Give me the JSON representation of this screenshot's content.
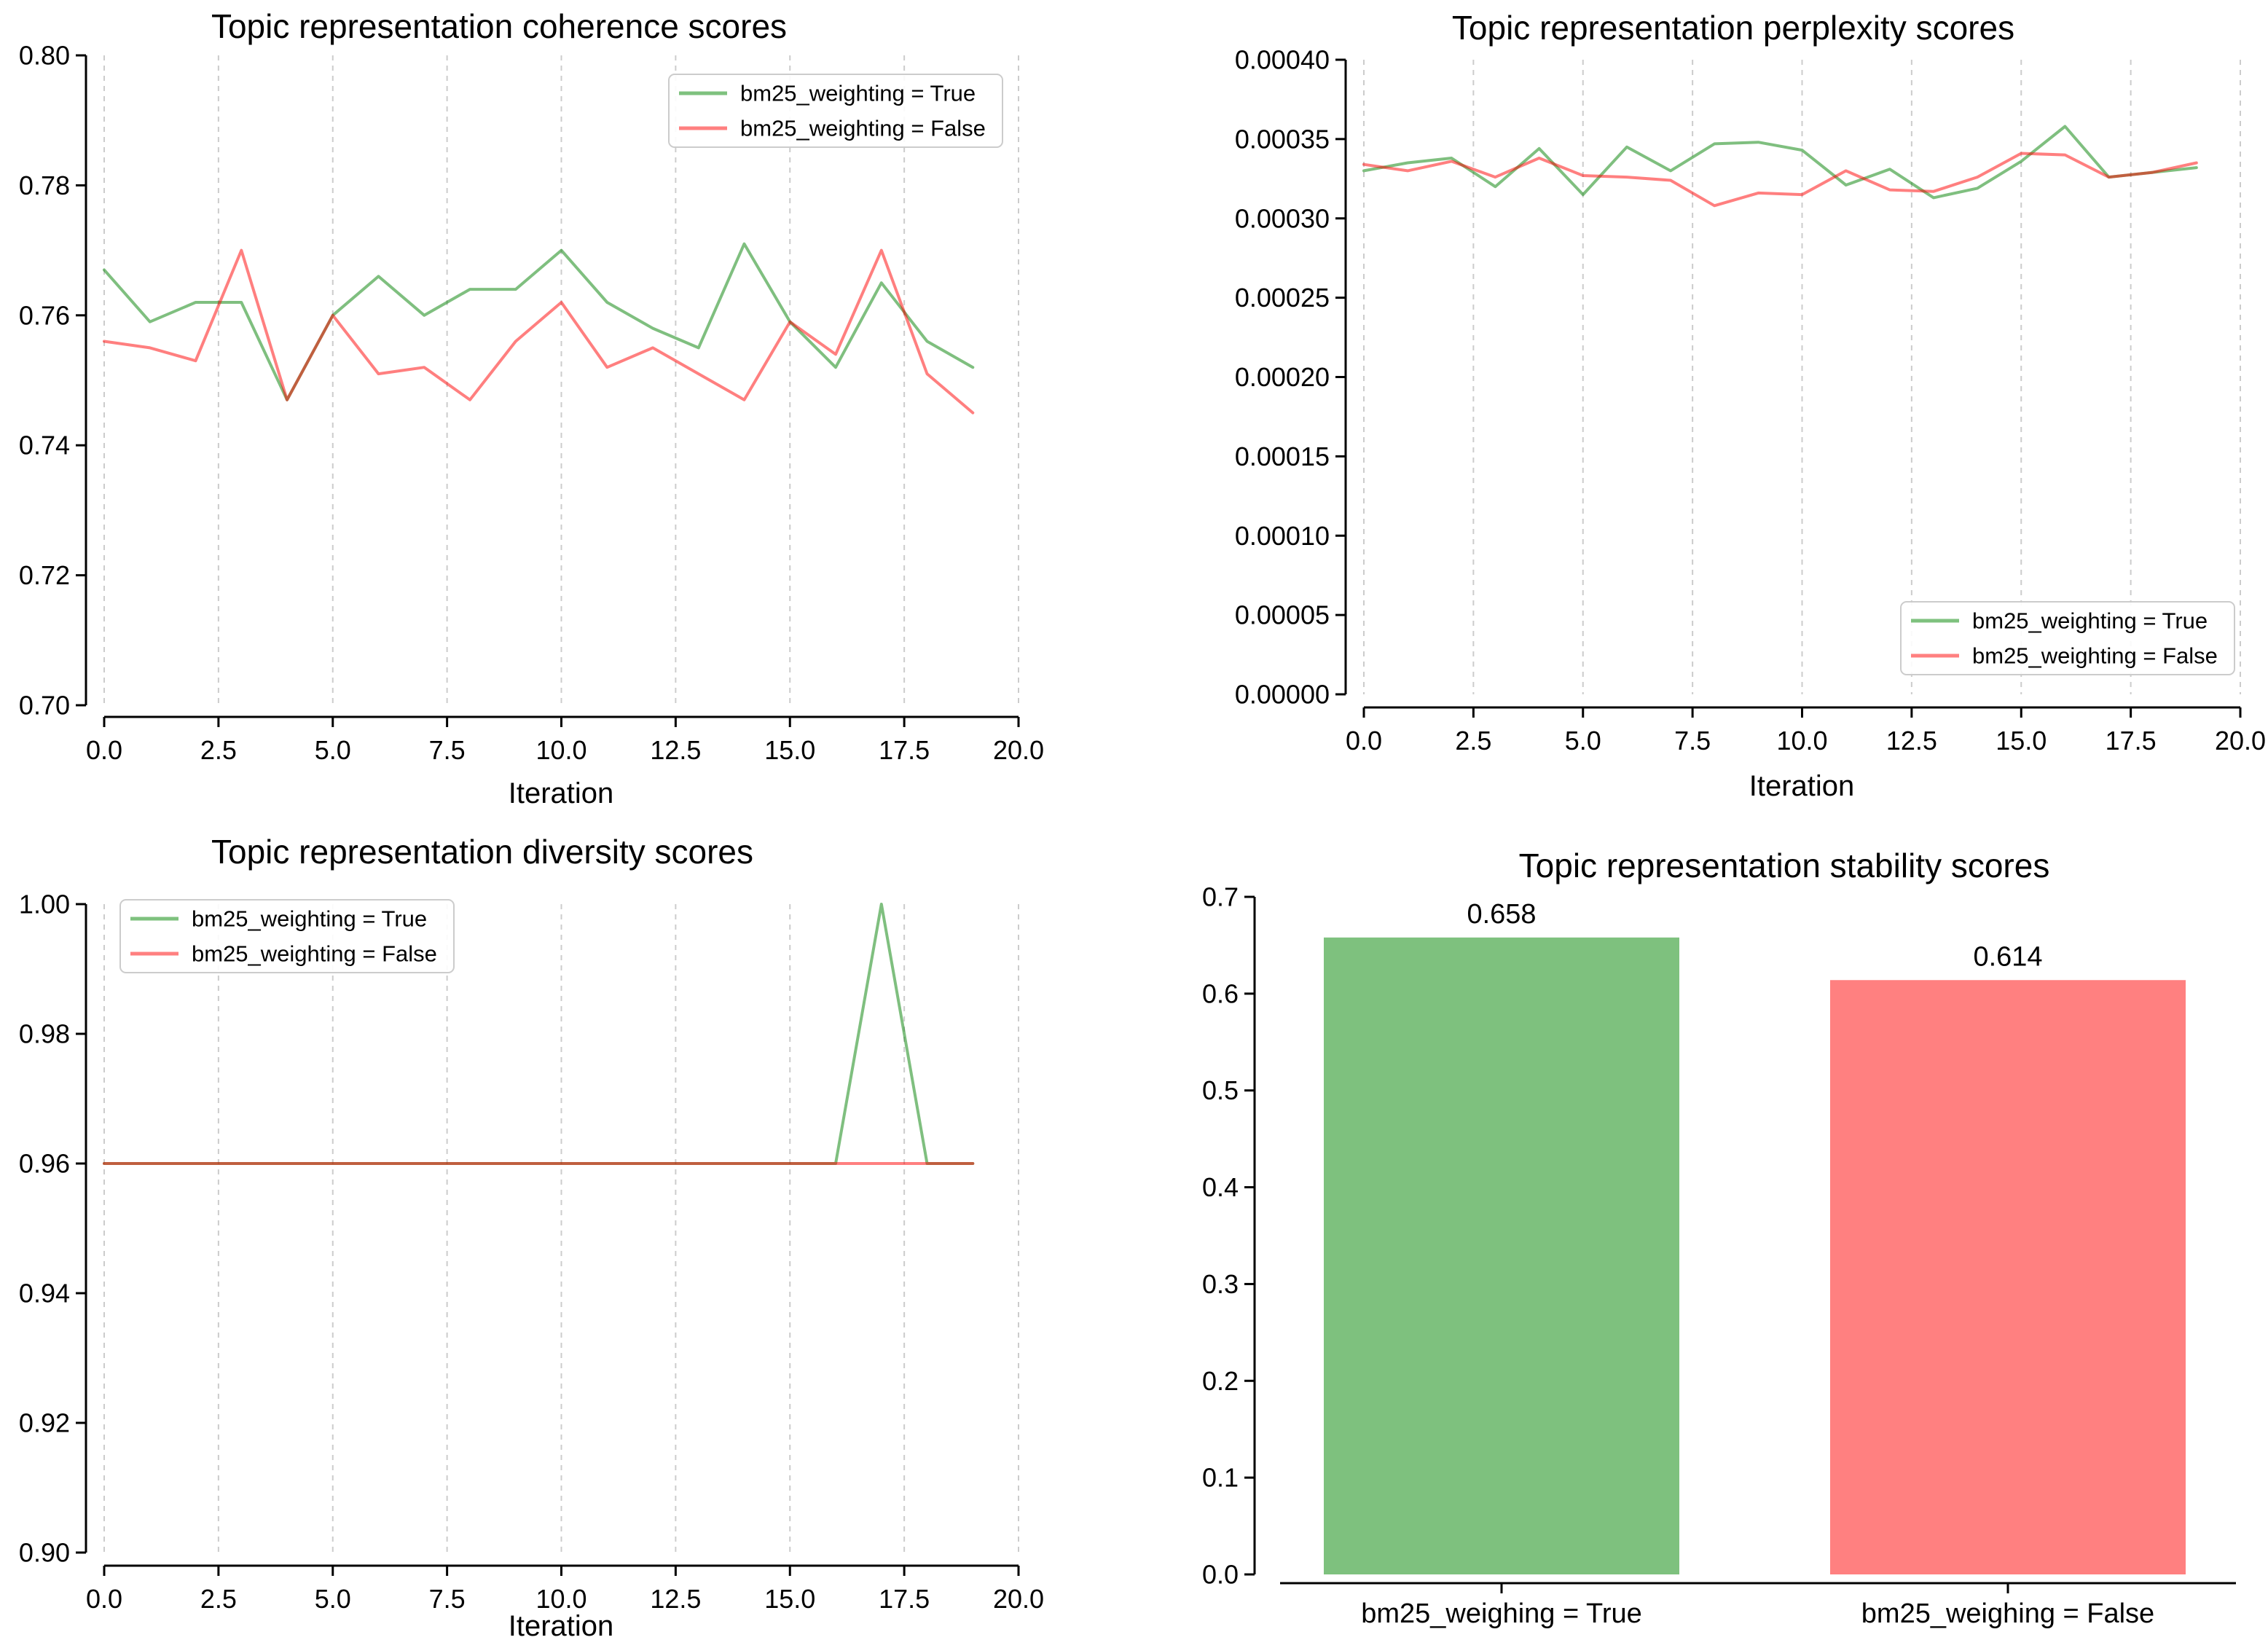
{
  "figure": {
    "background": "#ffffff"
  },
  "colors": {
    "series_true_stroke": "#008000",
    "series_false_stroke": "#ff0000",
    "series_true_solid": "#7ec17e",
    "series_false_solid": "#ff8080",
    "gridline": "#cccccc",
    "axis": "#000000",
    "legend_border": "#cccccc",
    "legend_background": "#ffffff"
  },
  "chart_data": [
    {
      "id": "coherence",
      "type": "line",
      "title": "Topic representation coherence scores",
      "xlabel": "Iteration",
      "ylabel": "",
      "xlim": [
        0,
        20
      ],
      "ylim": [
        0.7,
        0.8
      ],
      "xticks": [
        "0.0",
        "2.5",
        "5.0",
        "7.5",
        "10.0",
        "12.5",
        "15.0",
        "17.5",
        "20.0"
      ],
      "yticks": [
        "0.70",
        "0.72",
        "0.74",
        "0.76",
        "0.78",
        "0.80"
      ],
      "grid": "vertical-dashed",
      "legend_position": "upper right",
      "x": [
        0,
        1,
        2,
        3,
        4,
        5,
        6,
        7,
        8,
        9,
        10,
        11,
        12,
        13,
        14,
        15,
        16,
        17,
        18,
        19
      ],
      "series": [
        {
          "name": "bm25_weighting = True",
          "stroke": "#008000",
          "color": "#7ec17e",
          "values": [
            0.767,
            0.759,
            0.762,
            0.762,
            0.747,
            0.76,
            0.766,
            0.76,
            0.764,
            0.764,
            0.77,
            0.762,
            0.758,
            0.755,
            0.771,
            0.759,
            0.752,
            0.765,
            0.756,
            0.752
          ]
        },
        {
          "name": "bm25_weighting = False",
          "stroke": "#ff0000",
          "color": "#ff8080",
          "values": [
            0.756,
            0.755,
            0.753,
            0.77,
            0.747,
            0.76,
            0.751,
            0.752,
            0.747,
            0.756,
            0.762,
            0.752,
            0.755,
            0.751,
            0.747,
            0.759,
            0.754,
            0.77,
            0.751,
            0.745
          ]
        }
      ]
    },
    {
      "id": "perplexity",
      "type": "line",
      "title": "Topic representation perplexity scores",
      "xlabel": "Iteration",
      "ylabel": "",
      "xlim": [
        0,
        20
      ],
      "ylim": [
        0.0,
        0.0004
      ],
      "xticks": [
        "0.0",
        "2.5",
        "5.0",
        "7.5",
        "10.0",
        "12.5",
        "15.0",
        "17.5",
        "20.0"
      ],
      "yticks": [
        "0.00000",
        "0.00005",
        "0.00010",
        "0.00015",
        "0.00020",
        "0.00025",
        "0.00030",
        "0.00035",
        "0.00040"
      ],
      "grid": "vertical-dashed",
      "legend_position": "lower right",
      "x": [
        0,
        1,
        2,
        3,
        4,
        5,
        6,
        7,
        8,
        9,
        10,
        11,
        12,
        13,
        14,
        15,
        16,
        17,
        18,
        19
      ],
      "series": [
        {
          "name": "bm25_weighting = True",
          "stroke": "#008000",
          "color": "#7ec17e",
          "values": [
            0.00033,
            0.000335,
            0.000338,
            0.00032,
            0.000344,
            0.000315,
            0.000345,
            0.00033,
            0.000347,
            0.000348,
            0.000343,
            0.000321,
            0.000331,
            0.000313,
            0.000319,
            0.000336,
            0.000358,
            0.000326,
            0.000329,
            0.000332
          ]
        },
        {
          "name": "bm25_weighting = False",
          "stroke": "#ff0000",
          "color": "#ff8080",
          "values": [
            0.000334,
            0.00033,
            0.000336,
            0.000326,
            0.000338,
            0.000327,
            0.000326,
            0.000324,
            0.000308,
            0.000316,
            0.000315,
            0.00033,
            0.000318,
            0.000317,
            0.000326,
            0.000341,
            0.00034,
            0.000326,
            0.000329,
            0.000335
          ]
        }
      ]
    },
    {
      "id": "diversity",
      "type": "line",
      "title": "Topic representation diversity scores",
      "xlabel": "Iteration",
      "ylabel": "",
      "xlim": [
        0,
        20
      ],
      "ylim": [
        0.9,
        1.0
      ],
      "xticks": [
        "0.0",
        "2.5",
        "5.0",
        "7.5",
        "10.0",
        "12.5",
        "15.0",
        "17.5",
        "20.0"
      ],
      "yticks": [
        "0.90",
        "0.92",
        "0.94",
        "0.96",
        "0.98",
        "1.00"
      ],
      "grid": "vertical-dashed",
      "legend_position": "upper left",
      "x": [
        0,
        1,
        2,
        3,
        4,
        5,
        6,
        7,
        8,
        9,
        10,
        11,
        12,
        13,
        14,
        15,
        16,
        17,
        18,
        19
      ],
      "series": [
        {
          "name": "bm25_weighting = True",
          "stroke": "#008000",
          "color": "#7ec17e",
          "values": [
            0.96,
            0.96,
            0.96,
            0.96,
            0.96,
            0.96,
            0.96,
            0.96,
            0.96,
            0.96,
            0.96,
            0.96,
            0.96,
            0.96,
            0.96,
            0.96,
            0.96,
            1.0,
            0.96,
            0.96
          ]
        },
        {
          "name": "bm25_weighting = False",
          "stroke": "#ff0000",
          "color": "#ff8080",
          "values": [
            0.96,
            0.96,
            0.96,
            0.96,
            0.96,
            0.96,
            0.96,
            0.96,
            0.96,
            0.96,
            0.96,
            0.96,
            0.96,
            0.96,
            0.96,
            0.96,
            0.96,
            0.96,
            0.96,
            0.96
          ]
        }
      ]
    },
    {
      "id": "stability",
      "type": "bar",
      "title": "Topic representation stability scores",
      "xlabel": "",
      "ylabel": "",
      "ylim": [
        0.0,
        0.7
      ],
      "yticks": [
        "0.0",
        "0.1",
        "0.2",
        "0.3",
        "0.4",
        "0.5",
        "0.6",
        "0.7"
      ],
      "grid": "off",
      "categories": [
        "bm25_weighing = True",
        "bm25_weighing = False"
      ],
      "values": [
        0.658,
        0.614
      ],
      "bars": [
        {
          "category": "bm25_weighing = True",
          "value": 0.658,
          "value_label": "0.658",
          "color": "#7ec17e"
        },
        {
          "category": "bm25_weighing = False",
          "value": 0.614,
          "value_label": "0.614",
          "color": "#ff8080"
        }
      ]
    }
  ]
}
